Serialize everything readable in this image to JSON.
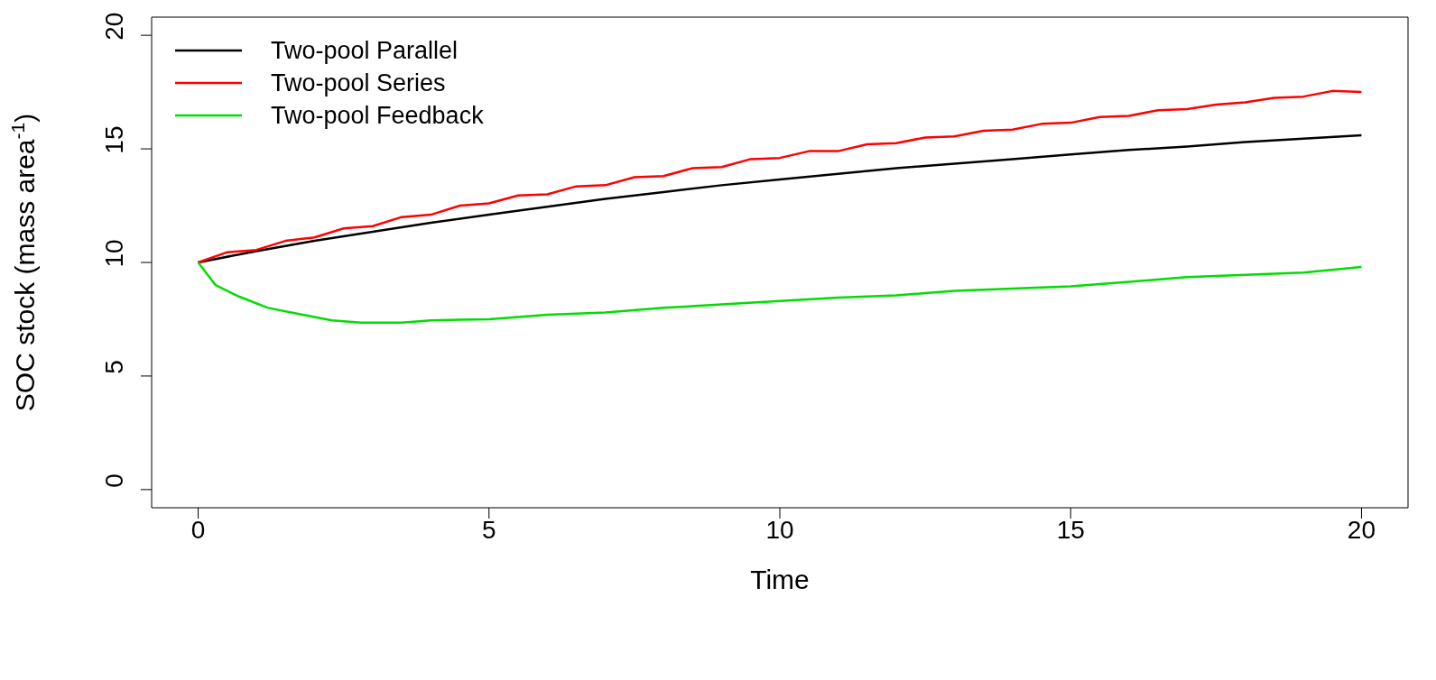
{
  "chart_data": {
    "type": "line",
    "xlabel": "Time",
    "ylabel": "SOC stock (mass area$^{-1}$)",
    "xlim": [
      -0.8,
      20.8
    ],
    "ylim": [
      -0.8,
      20.8
    ],
    "xticks": [
      0,
      5,
      10,
      15,
      20
    ],
    "yticks": [
      0,
      5,
      10,
      15,
      20
    ],
    "grid": false,
    "legend": "top left",
    "marker": "none",
    "line_style": "solid",
    "series": [
      {
        "name": "Two-pool Parallel",
        "color": "#000000",
        "x": [
          0,
          1,
          2,
          3,
          4,
          5,
          6,
          7,
          8,
          9,
          10,
          11,
          12,
          13,
          14,
          15,
          16,
          17,
          18,
          19,
          20
        ],
        "values": [
          10,
          10.5,
          10.95,
          11.35,
          11.75,
          12.1,
          12.45,
          12.8,
          13.1,
          13.4,
          13.65,
          13.9,
          14.15,
          14.35,
          14.55,
          14.75,
          14.95,
          15.1,
          15.3,
          15.45,
          15.6
        ]
      },
      {
        "name": "Two-pool Series",
        "color": "#ff0000",
        "x": [
          0,
          0.5,
          1,
          1.5,
          2,
          2.5,
          3,
          3.5,
          4,
          4.5,
          5,
          5.5,
          6,
          6.5,
          7,
          7.5,
          8,
          8.5,
          9,
          9.5,
          10,
          10.5,
          11,
          11.5,
          12,
          12.5,
          13,
          13.5,
          14,
          14.5,
          15,
          15.5,
          16,
          16.5,
          17,
          17.5,
          18,
          18.5,
          19,
          19.5,
          20
        ],
        "values": [
          10,
          10.45,
          10.55,
          10.95,
          11.1,
          11.5,
          11.6,
          12.0,
          12.1,
          12.5,
          12.6,
          12.95,
          13.0,
          13.35,
          13.4,
          13.75,
          13.8,
          14.15,
          14.2,
          14.55,
          14.6,
          14.9,
          14.9,
          15.2,
          15.25,
          15.5,
          15.55,
          15.8,
          15.85,
          16.1,
          16.15,
          16.4,
          16.45,
          16.7,
          16.75,
          16.95,
          17.05,
          17.25,
          17.3,
          17.55,
          17.5
        ]
      },
      {
        "name": "Two-pool Feedback",
        "color": "#00dd00",
        "x": [
          0,
          0.3,
          0.7,
          1.2,
          1.8,
          2.3,
          2.8,
          3.5,
          4,
          5,
          6,
          7,
          8,
          9,
          10,
          11,
          12,
          13,
          14,
          15,
          16,
          17,
          18,
          19,
          20
        ],
        "values": [
          10,
          9.0,
          8.5,
          8.0,
          7.7,
          7.45,
          7.35,
          7.35,
          7.45,
          7.5,
          7.7,
          7.8,
          8.0,
          8.15,
          8.3,
          8.45,
          8.55,
          8.75,
          8.85,
          8.95,
          9.15,
          9.35,
          9.45,
          9.55,
          9.8
        ]
      }
    ]
  }
}
